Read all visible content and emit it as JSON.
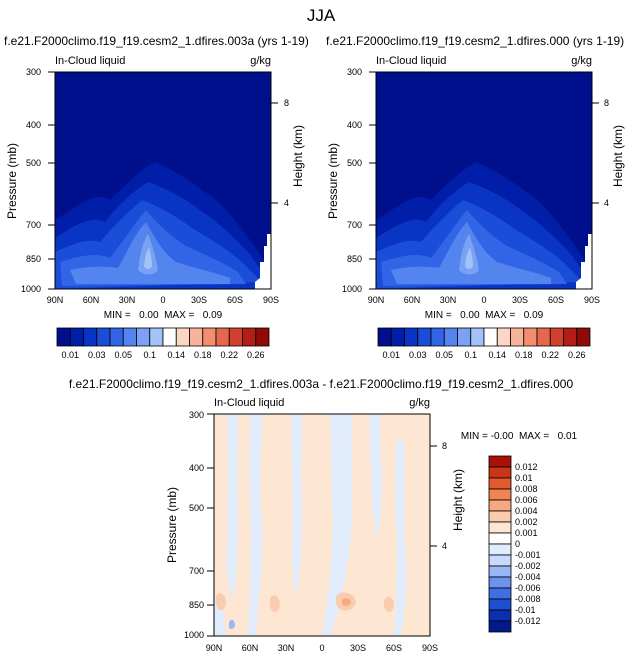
{
  "figure": {
    "title": "JJA"
  },
  "colors": {
    "main_scale": [
      "#000f8c",
      "#001ea8",
      "#0a35c4",
      "#1a4dd8",
      "#3265e6",
      "#5484ee",
      "#7aa2f4",
      "#a3c2f8",
      "#ffffff",
      "#fcd6c4",
      "#f8b49a",
      "#f28e6e",
      "#e6684a",
      "#d2402e",
      "#b41c18",
      "#900a0a"
    ],
    "diff_scale": [
      "#001a8c",
      "#0a2fb0",
      "#1e4fd2",
      "#3f6fe2",
      "#6b93ee",
      "#9ab6f6",
      "#c8dafb",
      "#e0ecfc",
      "#ffffff",
      "#fde6d2",
      "#fbcbb0",
      "#f7a880",
      "#ef8455",
      "#e35a2e",
      "#cc3418",
      "#a81008"
    ]
  },
  "chart_data": [
    {
      "type": "heatmap",
      "title": "f.e21.F2000climo.f19_f19.cesm2_1.dfires.003a (yrs 1-19)",
      "left_label": "In-Cloud liquid",
      "right_label": "g/kg",
      "xlabel": "",
      "ylabel": "Pressure (mb)",
      "ylabel_right": "Height (km)",
      "x_ticks": [
        "90N",
        "60N",
        "30N",
        "0",
        "30S",
        "60S",
        "90S"
      ],
      "y_ticks": [
        "300",
        "400",
        "500",
        "700",
        "850",
        "1000"
      ],
      "right_ticks": [
        "8",
        "4"
      ],
      "min_max": "MIN =   0.00  MAX =   0.09",
      "colorbar_labels": [
        "0.01",
        "0.03",
        "0.05",
        "0.1",
        "0.14",
        "0.18",
        "0.22",
        "0.26"
      ]
    },
    {
      "type": "heatmap",
      "title": "f.e21.F2000climo.f19_f19.cesm2_1.dfires.000 (yrs 1-19)",
      "left_label": "In-Cloud liquid",
      "right_label": "g/kg",
      "xlabel": "",
      "ylabel": "Pressure (mb)",
      "ylabel_right": "Height (km)",
      "x_ticks": [
        "90N",
        "60N",
        "30N",
        "0",
        "30S",
        "60S",
        "90S"
      ],
      "y_ticks": [
        "300",
        "400",
        "500",
        "700",
        "850",
        "1000"
      ],
      "right_ticks": [
        "8",
        "4"
      ],
      "min_max": "MIN =   0.00  MAX =   0.09",
      "colorbar_labels": [
        "0.01",
        "0.03",
        "0.05",
        "0.1",
        "0.14",
        "0.18",
        "0.22",
        "0.26"
      ]
    },
    {
      "type": "heatmap",
      "title": "f.e21.F2000climo.f19_f19.cesm2_1.dfires.003a - f.e21.F2000climo.f19_f19.cesm2_1.dfires.000",
      "left_label": "In-Cloud liquid",
      "right_label": "g/kg",
      "xlabel": "",
      "ylabel": "Pressure (mb)",
      "ylabel_right": "Height (km)",
      "x_ticks": [
        "90N",
        "60N",
        "30N",
        "0",
        "30S",
        "60S",
        "90S"
      ],
      "y_ticks": [
        "300",
        "400",
        "500",
        "700",
        "850",
        "1000"
      ],
      "right_ticks": [
        "8",
        "4"
      ],
      "min_max": "MIN = -0.00  MAX =   0.01",
      "colorbar_labels": [
        "0.012",
        "0.01",
        "0.008",
        "0.006",
        "0.004",
        "0.002",
        "0.001",
        "0",
        "-0.001",
        "-0.002",
        "-0.004",
        "-0.006",
        "-0.008",
        "-0.01",
        "-0.012"
      ]
    }
  ]
}
